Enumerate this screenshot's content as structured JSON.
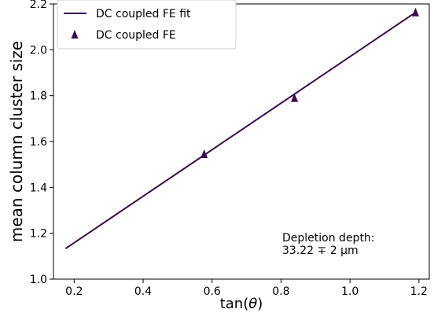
{
  "chart_data": {
    "type": "scatter",
    "xlabel": "tan(θ)",
    "ylabel": "mean column cluster size",
    "xlim": [
      0.14,
      1.23
    ],
    "ylim": [
      1.0,
      2.2
    ],
    "x_ticks": [
      "0.2",
      "0.4",
      "0.6",
      "0.8",
      "1.0",
      "1.2"
    ],
    "y_ticks": [
      "1.0",
      "1.2",
      "1.4",
      "1.6",
      "1.8",
      "2.0",
      "2.2"
    ],
    "grid": false,
    "legend_position": "top-left",
    "series": [
      {
        "name": "DC coupled FE fit",
        "kind": "line",
        "color": "#3b0a4d",
        "x": [
          0.175,
          1.19
        ],
        "y": [
          1.133,
          2.163
        ]
      },
      {
        "name": "DC coupled FE",
        "kind": "marker",
        "marker": "triangle",
        "color": "#3b0a4d",
        "x": [
          0.577,
          0.839,
          1.19
        ],
        "y": [
          1.545,
          1.79,
          2.163
        ]
      }
    ],
    "annotation": {
      "line1": "Depletion depth:",
      "line2": "33.22 ∓ 2 µm"
    }
  }
}
